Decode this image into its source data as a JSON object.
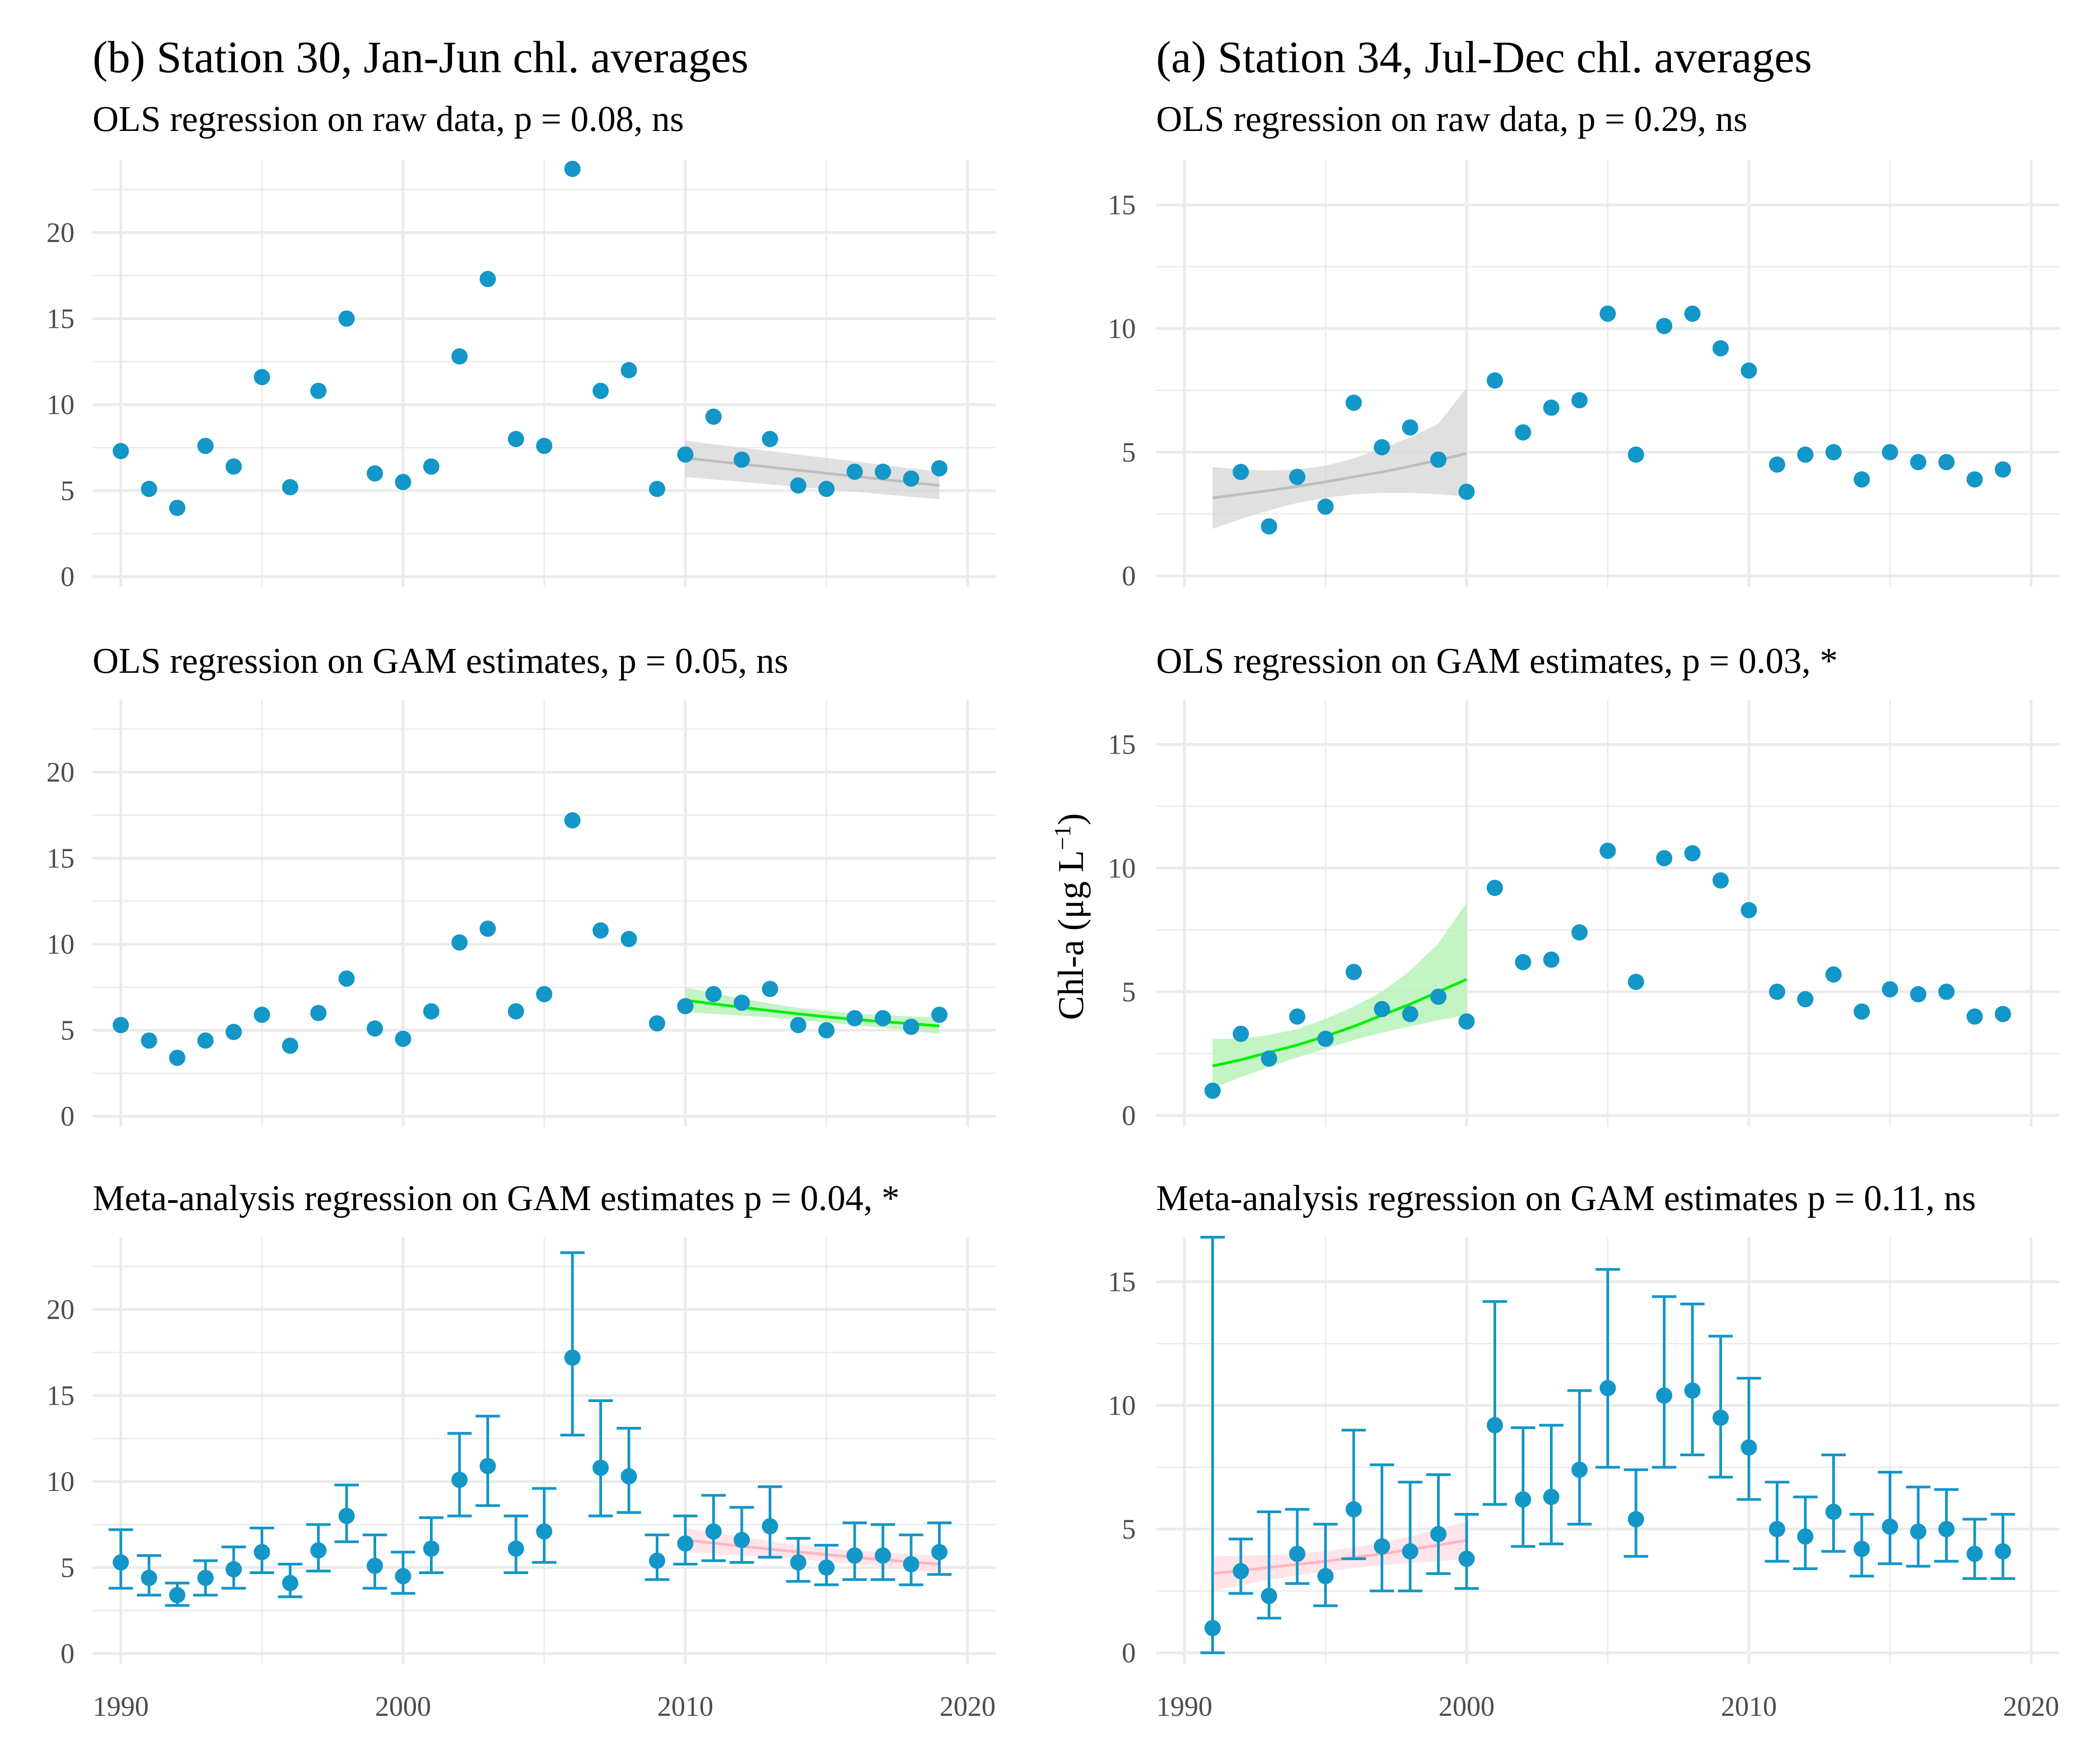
{
  "figure": {
    "ylabel_main": "Chl-a (μg L",
    "ylabel_sup": "−1",
    "ylabel_close": ")"
  },
  "colors": {
    "point": "#1396c8",
    "grid": "#ebebeb",
    "ols_raw_line": "#bdbdbd",
    "ols_raw_band": "#d6d6d6",
    "ols_gam_line": "#00ee00",
    "ols_gam_band": "#b9f2b9",
    "meta_line": "#ffb6c1",
    "meta_band": "#ffe0e6"
  },
  "chart_data": [
    {
      "id": "b-raw",
      "column": "left",
      "row": 0,
      "column_title": "(b) Station 30, Jan-Jun chl. averages",
      "title": "OLS regression on raw data, p = 0.08, ns",
      "type": "scatter",
      "xlim": [
        1989,
        2021
      ],
      "ylim": [
        -0.6,
        24.2
      ],
      "yticks": [
        "0",
        "5",
        "10",
        "15",
        "20"
      ],
      "yticks_val": [
        0,
        5,
        10,
        15,
        20
      ],
      "xticks": [
        "1990",
        "2000",
        "2010",
        "2020"
      ],
      "xticks_val": [
        1990,
        2000,
        2010,
        2020
      ],
      "show_xticks": false,
      "x": [
        1990,
        1991,
        1992,
        1993,
        1994,
        1995,
        1996,
        1997,
        1998,
        1999,
        2000,
        2001,
        2002,
        2003,
        2004,
        2005,
        2006,
        2007,
        2008,
        2009,
        2010,
        2011,
        2012,
        2013,
        2014,
        2015,
        2016,
        2017,
        2018,
        2019
      ],
      "y": [
        7.3,
        5.1,
        4.0,
        7.6,
        6.4,
        11.6,
        5.2,
        10.8,
        15.0,
        6.0,
        5.5,
        6.4,
        12.8,
        17.3,
        8.0,
        7.6,
        23.7,
        10.8,
        12.0,
        5.1,
        7.1,
        9.3,
        6.8,
        8.0,
        5.3,
        5.1,
        6.1,
        6.1,
        5.7,
        6.3
      ],
      "errors": null,
      "fit": {
        "style": "raw",
        "x": [
          2010,
          2019
        ],
        "y": [
          6.9,
          5.3
        ],
        "lower": [
          5.8,
          4.5
        ],
        "upper": [
          7.9,
          6.1
        ]
      }
    },
    {
      "id": "b-gam",
      "column": "left",
      "row": 1,
      "title": "OLS regression on GAM estimates, p = 0.05, ns",
      "type": "scatter",
      "xlim": [
        1989,
        2021
      ],
      "ylim": [
        -0.6,
        24.2
      ],
      "yticks": [
        "0",
        "5",
        "10",
        "15",
        "20"
      ],
      "yticks_val": [
        0,
        5,
        10,
        15,
        20
      ],
      "xticks": [
        "1990",
        "2000",
        "2010",
        "2020"
      ],
      "xticks_val": [
        1990,
        2000,
        2010,
        2020
      ],
      "show_xticks": false,
      "x": [
        1990,
        1991,
        1992,
        1993,
        1994,
        1995,
        1996,
        1997,
        1998,
        1999,
        2000,
        2001,
        2002,
        2003,
        2004,
        2005,
        2006,
        2007,
        2008,
        2009,
        2010,
        2011,
        2012,
        2013,
        2014,
        2015,
        2016,
        2017,
        2018,
        2019
      ],
      "y": [
        5.3,
        4.4,
        3.4,
        4.4,
        4.9,
        5.9,
        4.1,
        6.0,
        8.0,
        5.1,
        4.5,
        6.1,
        10.1,
        10.9,
        6.1,
        7.1,
        17.2,
        10.8,
        10.3,
        5.4,
        6.4,
        7.1,
        6.6,
        7.4,
        5.3,
        5.0,
        5.7,
        5.7,
        5.2,
        5.9
      ],
      "errors": null,
      "fit": {
        "style": "gam",
        "x": [
          2010,
          2011,
          2012,
          2013,
          2014,
          2015,
          2016,
          2017,
          2018,
          2019
        ],
        "y": [
          6.75,
          6.53,
          6.33,
          6.14,
          5.95,
          5.78,
          5.63,
          5.5,
          5.38,
          5.25
        ],
        "lower": [
          6.05,
          5.95,
          5.85,
          5.75,
          5.6,
          5.45,
          5.3,
          5.15,
          4.95,
          4.8
        ],
        "upper": [
          7.5,
          7.15,
          6.85,
          6.55,
          6.3,
          6.12,
          5.98,
          5.88,
          5.8,
          5.72
        ]
      }
    },
    {
      "id": "b-meta",
      "column": "left",
      "row": 2,
      "title": "Meta-analysis regression on GAM estimates p = 0.04, *",
      "type": "scatter",
      "xlim": [
        1989,
        2021
      ],
      "ylim": [
        -0.6,
        24.2
      ],
      "yticks": [
        "0",
        "5",
        "10",
        "15",
        "20"
      ],
      "yticks_val": [
        0,
        5,
        10,
        15,
        20
      ],
      "xticks": [
        "1990",
        "2000",
        "2010",
        "2020"
      ],
      "xticks_val": [
        1990,
        2000,
        2010,
        2020
      ],
      "show_xticks": true,
      "x": [
        1990,
        1991,
        1992,
        1993,
        1994,
        1995,
        1996,
        1997,
        1998,
        1999,
        2000,
        2001,
        2002,
        2003,
        2004,
        2005,
        2006,
        2007,
        2008,
        2009,
        2010,
        2011,
        2012,
        2013,
        2014,
        2015,
        2016,
        2017,
        2018,
        2019
      ],
      "y": [
        5.3,
        4.4,
        3.4,
        4.4,
        4.9,
        5.9,
        4.1,
        6.0,
        8.0,
        5.1,
        4.5,
        6.1,
        10.1,
        10.9,
        6.1,
        7.1,
        17.2,
        10.8,
        10.3,
        5.4,
        6.4,
        7.1,
        6.6,
        7.4,
        5.3,
        5.0,
        5.7,
        5.7,
        5.2,
        5.9
      ],
      "errors": {
        "lower": [
          3.8,
          3.4,
          2.8,
          3.4,
          3.8,
          4.7,
          3.3,
          4.8,
          6.5,
          3.8,
          3.5,
          4.7,
          8.0,
          8.6,
          4.7,
          5.3,
          12.7,
          8.0,
          8.2,
          4.3,
          5.2,
          5.4,
          5.3,
          5.6,
          4.2,
          4.0,
          4.3,
          4.3,
          4.0,
          4.6
        ],
        "upper": [
          7.2,
          5.7,
          4.1,
          5.4,
          6.2,
          7.3,
          5.2,
          7.5,
          9.8,
          6.9,
          5.9,
          7.9,
          12.8,
          13.8,
          8.0,
          9.6,
          23.3,
          14.7,
          13.1,
          6.9,
          8.0,
          9.2,
          8.5,
          9.7,
          6.7,
          6.3,
          7.6,
          7.5,
          6.9,
          7.6
        ]
      },
      "fit": {
        "style": "meta",
        "x": [
          2010,
          2011,
          2012,
          2013,
          2014,
          2015,
          2016,
          2017,
          2018,
          2019
        ],
        "y": [
          6.6,
          6.42,
          6.24,
          6.07,
          5.91,
          5.75,
          5.6,
          5.46,
          5.32,
          5.2
        ],
        "lower": [
          5.9,
          5.8,
          5.7,
          5.6,
          5.5,
          5.35,
          5.2,
          5.05,
          4.85,
          4.7
        ],
        "upper": [
          7.3,
          7.05,
          6.8,
          6.55,
          6.32,
          6.15,
          6.0,
          5.87,
          5.78,
          5.7
        ]
      }
    },
    {
      "id": "a-raw",
      "column": "right",
      "row": 0,
      "column_title": "(a) Station 34, Jul-Dec chl. averages",
      "title": "OLS regression on raw data, p = 0.29, ns",
      "type": "scatter",
      "xlim": [
        1989,
        2021
      ],
      "ylim": [
        -0.45,
        16.8
      ],
      "yticks": [
        "0",
        "5",
        "10",
        "15"
      ],
      "yticks_val": [
        0,
        5,
        10,
        15
      ],
      "xticks": [
        "1990",
        "2000",
        "2010",
        "2020"
      ],
      "xticks_val": [
        1990,
        2000,
        2010,
        2020
      ],
      "show_xticks": false,
      "x": [
        1992,
        1993,
        1994,
        1995,
        1996,
        1997,
        1998,
        1999,
        2000,
        2001,
        2002,
        2003,
        2004,
        2005,
        2006,
        2007,
        2008,
        2009,
        2010,
        2011,
        2012,
        2013,
        2014,
        2015,
        2016,
        2017,
        2018,
        2019
      ],
      "y": [
        4.2,
        2.0,
        4.0,
        2.8,
        7.0,
        5.2,
        6.0,
        4.7,
        3.4,
        7.9,
        5.8,
        6.8,
        7.1,
        10.6,
        4.9,
        10.1,
        10.6,
        9.2,
        8.3,
        4.5,
        4.9,
        5.0,
        3.9,
        5.0,
        4.6,
        4.6,
        3.9,
        4.3
      ],
      "errors": null,
      "fit": {
        "style": "raw",
        "x": [
          1991,
          1992,
          1993,
          1994,
          1995,
          1996,
          1997,
          1998,
          1999,
          2000
        ],
        "y": [
          3.15,
          3.3,
          3.45,
          3.62,
          3.8,
          4.0,
          4.2,
          4.43,
          4.68,
          4.95
        ],
        "lower": [
          1.9,
          2.3,
          2.65,
          2.95,
          3.15,
          3.3,
          3.35,
          3.35,
          3.3,
          3.2
        ],
        "upper": [
          4.4,
          4.3,
          4.25,
          4.3,
          4.45,
          4.75,
          5.15,
          5.6,
          6.15,
          7.6
        ]
      }
    },
    {
      "id": "a-gam",
      "column": "right",
      "row": 1,
      "title": "OLS regression on GAM estimates, p = 0.03, *",
      "type": "scatter",
      "xlim": [
        1989,
        2021
      ],
      "ylim": [
        -0.45,
        16.8
      ],
      "yticks": [
        "0",
        "5",
        "10",
        "15"
      ],
      "yticks_val": [
        0,
        5,
        10,
        15
      ],
      "xticks": [
        "1990",
        "2000",
        "2010",
        "2020"
      ],
      "xticks_val": [
        1990,
        2000,
        2010,
        2020
      ],
      "show_xticks": false,
      "x": [
        1991,
        1992,
        1993,
        1994,
        1995,
        1996,
        1997,
        1998,
        1999,
        2000,
        2001,
        2002,
        2003,
        2004,
        2005,
        2006,
        2007,
        2008,
        2009,
        2010,
        2011,
        2012,
        2013,
        2014,
        2015,
        2016,
        2017,
        2018,
        2019
      ],
      "y": [
        1.0,
        3.3,
        2.3,
        4.0,
        3.1,
        5.8,
        4.3,
        4.1,
        4.8,
        3.8,
        9.2,
        6.2,
        6.3,
        7.4,
        10.7,
        5.4,
        10.4,
        10.6,
        9.5,
        8.3,
        5.0,
        4.7,
        5.7,
        4.2,
        5.1,
        4.9,
        5.0,
        4.0,
        4.1
      ],
      "errors": null,
      "fit": {
        "style": "gam",
        "x": [
          1991,
          1992,
          1993,
          1994,
          1995,
          1996,
          1997,
          1998,
          1999,
          2000
        ],
        "y": [
          2.0,
          2.25,
          2.55,
          2.85,
          3.2,
          3.6,
          4.05,
          4.5,
          5.0,
          5.5
        ],
        "lower": [
          1.1,
          1.55,
          1.95,
          2.35,
          2.7,
          3.05,
          3.35,
          3.6,
          3.85,
          4.05
        ],
        "upper": [
          3.1,
          3.1,
          3.25,
          3.5,
          3.9,
          4.4,
          5.0,
          5.85,
          6.95,
          8.6
        ]
      }
    },
    {
      "id": "a-meta",
      "column": "right",
      "row": 2,
      "title": "Meta-analysis regression on GAM estimates p = 0.11, ns",
      "type": "scatter",
      "xlim": [
        1989,
        2021
      ],
      "ylim": [
        -0.45,
        16.8
      ],
      "yticks": [
        "0",
        "5",
        "10",
        "15"
      ],
      "yticks_val": [
        0,
        5,
        10,
        15
      ],
      "xticks": [
        "1990",
        "2000",
        "2010",
        "2020"
      ],
      "xticks_val": [
        1990,
        2000,
        2010,
        2020
      ],
      "show_xticks": true,
      "x": [
        1991,
        1992,
        1993,
        1994,
        1995,
        1996,
        1997,
        1998,
        1999,
        2000,
        2001,
        2002,
        2003,
        2004,
        2005,
        2006,
        2007,
        2008,
        2009,
        2010,
        2011,
        2012,
        2013,
        2014,
        2015,
        2016,
        2017,
        2018,
        2019
      ],
      "y": [
        1.0,
        3.3,
        2.3,
        4.0,
        3.1,
        5.8,
        4.3,
        4.1,
        4.8,
        3.8,
        9.2,
        6.2,
        6.3,
        7.4,
        10.7,
        5.4,
        10.4,
        10.6,
        9.5,
        8.3,
        5.0,
        4.7,
        5.7,
        4.2,
        5.1,
        4.9,
        5.0,
        4.0,
        4.1
      ],
      "errors": {
        "lower": [
          0.0,
          2.4,
          1.4,
          2.8,
          1.9,
          3.8,
          2.5,
          2.5,
          3.2,
          2.6,
          6.0,
          4.3,
          4.4,
          5.2,
          7.5,
          3.9,
          7.5,
          8.0,
          7.1,
          6.2,
          3.7,
          3.4,
          4.1,
          3.1,
          3.6,
          3.5,
          3.7,
          3.0,
          3.0
        ],
        "upper": [
          16.8,
          4.6,
          5.7,
          5.8,
          5.2,
          9.0,
          7.6,
          6.9,
          7.2,
          5.6,
          14.2,
          9.1,
          9.2,
          10.6,
          15.5,
          7.4,
          14.4,
          14.1,
          12.8,
          11.1,
          6.9,
          6.3,
          8.0,
          5.6,
          7.3,
          6.7,
          6.6,
          5.4,
          5.6
        ]
      },
      "fit": {
        "style": "meta",
        "x": [
          1991,
          1993,
          1995,
          1997,
          1999,
          2000
        ],
        "y": [
          3.2,
          3.45,
          3.7,
          4.0,
          4.35,
          4.55
        ],
        "lower": [
          2.5,
          2.95,
          3.3,
          3.55,
          3.7,
          3.8
        ],
        "upper": [
          3.9,
          3.95,
          4.1,
          4.45,
          5.0,
          5.3
        ]
      }
    }
  ]
}
